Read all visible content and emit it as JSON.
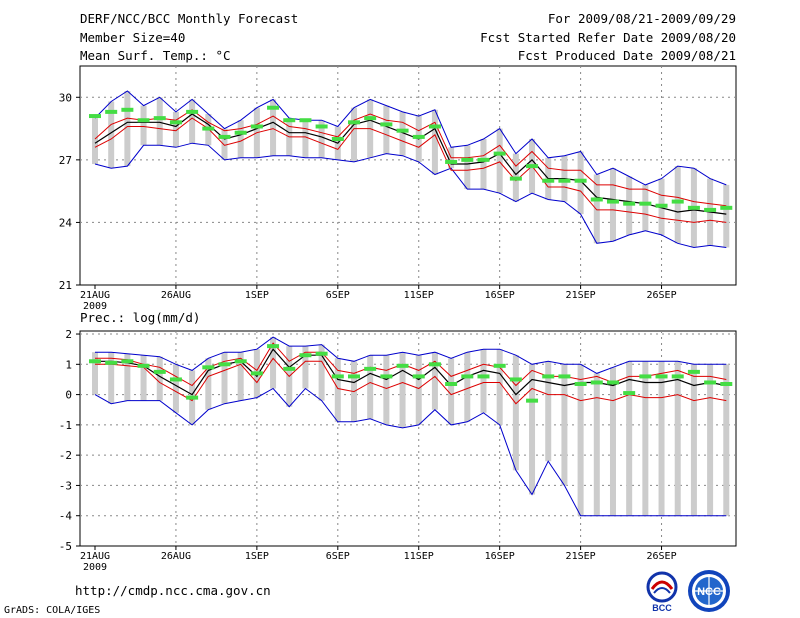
{
  "header": {
    "title": "DERF/NCC/BCC Monthly Forecast",
    "member_size": "Member Size=40",
    "variable": "Mean Surf. Temp.: °C",
    "for_range": "For 2009/08/21-2009/09/29",
    "started": "Fcst Started Refer Date 2009/08/20",
    "produced": "Fcst Produced Date 2009/08/21"
  },
  "footer": {
    "url": "http://cmdp.ncc.cma.gov.cn",
    "credit": "GrADS: COLA/IGES",
    "logo1_text": "BCC",
    "logo2_text": "NCC"
  },
  "colors": {
    "envelope": "#0000cc",
    "spread": "#dd0000",
    "mean": "#000000",
    "bar": "#cccccc",
    "marker": "#44dd44"
  },
  "chart_data": [
    {
      "type": "line",
      "title": "Mean Surf. Temp.: °C",
      "x_ticks": [
        "21AUG\n2009",
        "26AUG",
        "1SEP",
        "6SEP",
        "11SEP",
        "16SEP",
        "21SEP",
        "26SEP"
      ],
      "ylim": [
        21,
        31.5
      ],
      "yticks": [
        21,
        24,
        27,
        30
      ],
      "days": 40,
      "series": [
        {
          "name": "max",
          "values": [
            26.8,
            26.6,
            26.7,
            27.7,
            27.7,
            27.6,
            27.8,
            27.7,
            27.0,
            27.1,
            27.1,
            27.2,
            27.2,
            27.1,
            27.1,
            27.0,
            26.9,
            27.1,
            27.3,
            27.2,
            26.9,
            26.3,
            26.6,
            25.6,
            25.6,
            25.4,
            25.0,
            25.4,
            25.1,
            25.0,
            24.4,
            23.0,
            23.1,
            23.4,
            23.6,
            23.4,
            23.0,
            22.8,
            22.9,
            22.8
          ]
        },
        {
          "name": "p80",
          "values": [
            28.0,
            28.7,
            29.0,
            28.9,
            29.0,
            28.9,
            29.4,
            28.8,
            28.4,
            28.5,
            28.7,
            29.1,
            28.6,
            28.5,
            28.3,
            28.1,
            28.9,
            29.2,
            28.9,
            28.8,
            28.4,
            28.8,
            27.1,
            27.1,
            27.2,
            27.7,
            26.7,
            27.4,
            26.6,
            26.5,
            26.5,
            25.8,
            25.8,
            25.6,
            25.6,
            25.3,
            25.2,
            25.0,
            24.9,
            24.8
          ]
        },
        {
          "name": "p20",
          "values": [
            27.6,
            28.0,
            28.6,
            28.6,
            28.5,
            28.4,
            29.0,
            28.5,
            27.7,
            27.9,
            28.3,
            28.5,
            28.1,
            28.1,
            27.8,
            27.5,
            28.5,
            28.5,
            28.2,
            27.9,
            27.6,
            28.2,
            26.5,
            26.5,
            26.6,
            26.9,
            26.0,
            26.7,
            25.7,
            25.7,
            25.5,
            24.6,
            24.6,
            24.5,
            24.4,
            24.2,
            24.1,
            24.0,
            24.1,
            24.0
          ]
        },
        {
          "name": "mean",
          "values": [
            27.8,
            28.3,
            28.8,
            28.8,
            28.8,
            28.6,
            29.2,
            28.7,
            28.0,
            28.2,
            28.5,
            28.8,
            28.3,
            28.3,
            28.1,
            27.8,
            28.7,
            28.9,
            28.6,
            28.3,
            28.0,
            28.5,
            26.8,
            26.8,
            26.9,
            27.3,
            26.3,
            27.0,
            26.1,
            26.1,
            26.0,
            25.2,
            25.1,
            25.0,
            24.9,
            24.7,
            24.5,
            24.6,
            24.5,
            24.4
          ]
        },
        {
          "name": "min",
          "values": [
            29.0,
            29.8,
            30.3,
            29.6,
            30.0,
            29.3,
            29.9,
            29.2,
            28.5,
            28.9,
            29.5,
            29.9,
            29.0,
            28.9,
            28.9,
            28.6,
            29.5,
            29.9,
            29.6,
            29.3,
            29.1,
            29.4,
            27.6,
            27.7,
            28.0,
            28.5,
            27.3,
            28.0,
            27.1,
            27.2,
            27.4,
            26.3,
            26.6,
            26.2,
            25.8,
            26.1,
            26.7,
            26.6,
            26.1,
            25.8
          ]
        },
        {
          "name": "obs",
          "values": [
            29.1,
            29.3,
            29.4,
            28.9,
            29.0,
            28.8,
            29.3,
            28.5,
            28.1,
            28.3,
            28.6,
            29.5,
            28.9,
            28.9,
            28.6,
            28.0,
            28.8,
            29.0,
            28.7,
            28.4,
            28.1,
            28.6,
            26.9,
            27.0,
            27.0,
            27.3,
            26.1,
            26.7,
            26.0,
            26.0,
            26.0,
            25.1,
            25.0,
            24.9,
            24.9,
            24.8,
            25.0,
            24.7,
            24.6,
            24.7
          ]
        }
      ]
    },
    {
      "type": "line",
      "title": "Prec.: log(mm/d)",
      "x_ticks": [
        "21AUG\n2009",
        "26AUG",
        "1SEP",
        "6SEP",
        "11SEP",
        "16SEP",
        "21SEP",
        "26SEP"
      ],
      "ylim": [
        -5,
        2.1
      ],
      "yticks": [
        -5,
        -4,
        -3,
        -2,
        -1,
        0,
        1,
        2
      ],
      "days": 40,
      "series": [
        {
          "name": "max",
          "values": [
            1.4,
            1.4,
            1.35,
            1.3,
            1.25,
            1.0,
            0.8,
            1.2,
            1.4,
            1.4,
            1.5,
            1.9,
            1.6,
            1.6,
            1.65,
            1.2,
            1.1,
            1.3,
            1.3,
            1.4,
            1.3,
            1.4,
            1.2,
            1.4,
            1.5,
            1.5,
            1.3,
            1.0,
            1.1,
            1.0,
            1.0,
            0.7,
            0.9,
            1.1,
            1.1,
            1.1,
            1.1,
            1.0,
            1.0,
            1.0
          ]
        },
        {
          "name": "p80",
          "values": [
            1.2,
            1.2,
            1.15,
            1.0,
            0.9,
            0.6,
            0.3,
            0.9,
            1.1,
            1.2,
            0.8,
            1.7,
            1.1,
            1.4,
            1.4,
            0.8,
            0.7,
            0.9,
            0.8,
            1.0,
            0.8,
            1.1,
            0.6,
            0.8,
            1.0,
            0.9,
            0.3,
            0.8,
            0.6,
            0.6,
            0.5,
            0.6,
            0.4,
            0.6,
            0.6,
            0.7,
            0.8,
            0.6,
            0.6,
            0.5
          ]
        },
        {
          "name": "p20",
          "values": [
            1.0,
            1.0,
            0.95,
            0.9,
            0.4,
            0.1,
            -0.2,
            0.6,
            0.8,
            1.0,
            0.4,
            1.2,
            0.6,
            1.1,
            1.1,
            0.2,
            0.1,
            0.4,
            0.2,
            0.4,
            0.2,
            0.6,
            0.0,
            0.2,
            0.4,
            0.4,
            -0.3,
            0.2,
            0.0,
            0.0,
            -0.2,
            -0.1,
            -0.2,
            0.0,
            -0.1,
            -0.1,
            0.0,
            -0.2,
            -0.1,
            -0.2
          ]
        },
        {
          "name": "mean",
          "values": [
            1.1,
            1.1,
            1.05,
            0.95,
            0.6,
            0.3,
            0.0,
            0.8,
            1.0,
            1.1,
            0.6,
            1.5,
            0.9,
            1.3,
            1.3,
            0.5,
            0.4,
            0.7,
            0.5,
            0.8,
            0.5,
            0.9,
            0.3,
            0.6,
            0.8,
            0.7,
            0.0,
            0.5,
            0.4,
            0.3,
            0.4,
            0.4,
            0.3,
            0.5,
            0.4,
            0.4,
            0.5,
            0.3,
            0.4,
            0.3
          ]
        },
        {
          "name": "min",
          "values": [
            0.0,
            -0.3,
            -0.2,
            -0.2,
            -0.2,
            -0.6,
            -1.0,
            -0.5,
            -0.3,
            -0.2,
            -0.1,
            0.2,
            -0.4,
            0.2,
            -0.2,
            -0.9,
            -0.9,
            -0.8,
            -1.0,
            -1.1,
            -1.0,
            -0.5,
            -1.0,
            -0.9,
            -0.6,
            -1.0,
            -2.5,
            -3.3,
            -2.2,
            -3.0,
            -4.0,
            -4.0,
            -4.0,
            -4.0,
            -4.0,
            -4.0,
            -4.0,
            -4.0,
            -4.0,
            -4.0
          ]
        },
        {
          "name": "obs",
          "values": [
            1.1,
            1.05,
            1.1,
            0.95,
            0.75,
            0.5,
            -0.1,
            0.9,
            1.0,
            1.1,
            0.7,
            1.6,
            0.85,
            1.3,
            1.35,
            0.6,
            0.6,
            0.85,
            0.6,
            0.95,
            0.6,
            1.0,
            0.35,
            0.6,
            0.6,
            0.95,
            0.5,
            -0.2,
            0.6,
            0.6,
            0.35,
            0.4,
            0.4,
            0.05,
            0.6,
            0.6,
            0.6,
            0.75,
            0.4,
            0.35
          ]
        }
      ]
    }
  ]
}
